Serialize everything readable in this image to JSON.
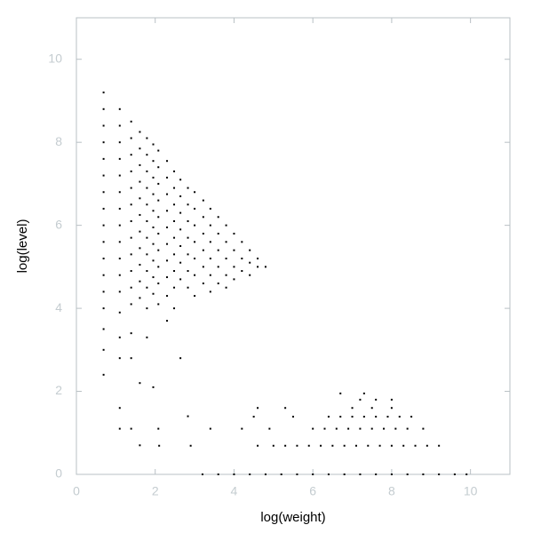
{
  "chart_data": {
    "type": "scatter",
    "xlabel": "log(weight)",
    "ylabel": "log(level)",
    "color": "#000000",
    "xlim": [
      0,
      11
    ],
    "ylim": [
      0,
      11
    ],
    "xticks": [
      0,
      2,
      4,
      6,
      8,
      10
    ],
    "yticks": [
      0,
      2,
      4,
      6,
      8,
      10
    ],
    "x": [
      0.69,
      0.69,
      0.69,
      0.69,
      0.69,
      0.69,
      0.69,
      0.69,
      0.69,
      0.69,
      0.69,
      0.69,
      0.69,
      0.69,
      0.69,
      0.69,
      0.69,
      1.1,
      1.1,
      1.1,
      1.1,
      1.1,
      1.1,
      1.1,
      1.1,
      1.1,
      1.1,
      1.1,
      1.1,
      1.1,
      1.1,
      1.1,
      1.1,
      1.1,
      1.39,
      1.39,
      1.39,
      1.39,
      1.39,
      1.39,
      1.39,
      1.39,
      1.39,
      1.39,
      1.39,
      1.39,
      1.39,
      1.39,
      1.39,
      1.61,
      1.61,
      1.61,
      1.61,
      1.61,
      1.61,
      1.61,
      1.61,
      1.61,
      1.61,
      1.61,
      1.61,
      1.61,
      1.79,
      1.79,
      1.79,
      1.79,
      1.79,
      1.79,
      1.79,
      1.79,
      1.79,
      1.79,
      1.79,
      1.79,
      1.95,
      1.95,
      1.95,
      1.95,
      1.95,
      1.95,
      1.95,
      1.95,
      1.95,
      1.95,
      1.95,
      2.08,
      2.08,
      2.08,
      2.08,
      2.08,
      2.08,
      2.08,
      2.08,
      2.08,
      2.08,
      2.08,
      2.3,
      2.3,
      2.3,
      2.3,
      2.3,
      2.3,
      2.3,
      2.3,
      2.3,
      2.3,
      2.48,
      2.48,
      2.48,
      2.48,
      2.48,
      2.48,
      2.48,
      2.48,
      2.48,
      2.64,
      2.64,
      2.64,
      2.64,
      2.64,
      2.64,
      2.64,
      2.64,
      2.83,
      2.83,
      2.83,
      2.83,
      2.83,
      2.83,
      2.83,
      2.83,
      3.0,
      3.0,
      3.0,
      3.0,
      3.0,
      3.0,
      3.0,
      3.22,
      3.22,
      3.22,
      3.22,
      3.22,
      3.22,
      3.4,
      3.4,
      3.4,
      3.4,
      3.4,
      3.4,
      3.6,
      3.6,
      3.6,
      3.6,
      3.6,
      3.8,
      3.8,
      3.8,
      3.8,
      3.8,
      4.0,
      4.0,
      4.0,
      4.0,
      4.2,
      4.2,
      4.2,
      4.4,
      4.4,
      4.4,
      4.6,
      4.6,
      4.8,
      3.2,
      3.6,
      4.0,
      4.4,
      4.8,
      5.2,
      5.6,
      6.0,
      6.4,
      6.8,
      7.2,
      7.6,
      8.0,
      8.4,
      8.8,
      9.2,
      9.6,
      9.9,
      5.0,
      5.3,
      5.6,
      5.9,
      6.2,
      6.5,
      6.8,
      7.1,
      7.4,
      7.7,
      8.0,
      8.3,
      8.6,
      8.9,
      9.2,
      2.1,
      2.9,
      4.6,
      6.0,
      6.3,
      6.6,
      6.9,
      7.2,
      7.5,
      7.8,
      8.1,
      8.4,
      8.8,
      3.4,
      4.2,
      4.9,
      5.5,
      6.4,
      6.7,
      7.0,
      7.3,
      7.6,
      7.9,
      8.2,
      8.5,
      4.5,
      4.6,
      5.3,
      7.0,
      7.5,
      8.0,
      7.2,
      7.6,
      8.0,
      6.7,
      7.3
    ],
    "values": [
      9.2,
      8.8,
      8.4,
      8.0,
      7.6,
      7.2,
      6.8,
      6.4,
      6.0,
      5.6,
      5.2,
      4.8,
      4.4,
      4.0,
      3.5,
      3.0,
      2.4,
      8.8,
      8.4,
      8.0,
      7.6,
      7.2,
      6.8,
      6.4,
      6.0,
      5.6,
      5.2,
      4.8,
      4.4,
      3.9,
      3.3,
      2.8,
      1.6,
      1.1,
      8.5,
      8.1,
      7.7,
      7.3,
      6.9,
      6.5,
      6.1,
      5.7,
      5.3,
      4.9,
      4.5,
      4.1,
      3.4,
      2.8,
      1.1,
      8.25,
      7.85,
      7.45,
      7.05,
      6.65,
      6.25,
      5.85,
      5.45,
      5.05,
      4.65,
      4.25,
      2.2,
      0.7,
      8.1,
      7.7,
      7.3,
      6.9,
      6.5,
      6.1,
      5.7,
      5.3,
      4.9,
      4.5,
      4.0,
      3.3,
      7.95,
      7.55,
      7.15,
      6.75,
      6.35,
      5.95,
      5.55,
      5.15,
      4.75,
      4.35,
      2.1,
      7.8,
      7.4,
      7.0,
      6.6,
      6.2,
      5.8,
      5.4,
      5.0,
      4.6,
      4.1,
      1.1,
      7.55,
      7.15,
      6.75,
      6.35,
      5.95,
      5.55,
      5.15,
      4.75,
      4.3,
      3.7,
      7.3,
      6.9,
      6.5,
      6.1,
      5.7,
      5.3,
      4.9,
      4.5,
      4.0,
      7.1,
      6.7,
      6.3,
      5.9,
      5.5,
      5.1,
      4.7,
      2.8,
      6.9,
      6.5,
      6.1,
      5.7,
      5.3,
      4.9,
      4.5,
      1.4,
      6.8,
      6.4,
      6.0,
      5.6,
      5.2,
      4.8,
      4.3,
      6.6,
      6.2,
      5.8,
      5.4,
      5.0,
      4.6,
      6.4,
      6.0,
      5.6,
      5.2,
      4.8,
      4.4,
      6.2,
      5.8,
      5.4,
      5.0,
      4.6,
      6.0,
      5.6,
      5.2,
      4.8,
      4.5,
      5.8,
      5.4,
      5.0,
      4.7,
      5.6,
      5.2,
      4.9,
      5.4,
      5.1,
      4.8,
      5.2,
      5.0,
      5.0,
      0,
      0,
      0,
      0,
      0,
      0,
      0,
      0,
      0,
      0,
      0,
      0,
      0,
      0,
      0,
      0,
      0,
      0,
      0.69,
      0.69,
      0.69,
      0.69,
      0.69,
      0.69,
      0.69,
      0.69,
      0.69,
      0.69,
      0.69,
      0.69,
      0.69,
      0.69,
      0.69,
      0.69,
      0.69,
      0.69,
      1.1,
      1.1,
      1.1,
      1.1,
      1.1,
      1.1,
      1.1,
      1.1,
      1.1,
      1.1,
      1.1,
      1.1,
      1.1,
      1.39,
      1.39,
      1.39,
      1.39,
      1.39,
      1.39,
      1.39,
      1.39,
      1.39,
      1.39,
      1.6,
      1.6,
      1.6,
      1.6,
      1.6,
      1.8,
      1.8,
      1.8,
      1.95,
      1.95
    ]
  }
}
